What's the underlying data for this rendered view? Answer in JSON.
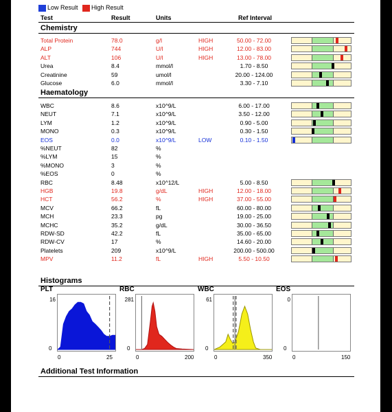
{
  "legend": {
    "low_label": "Low Result",
    "low_color": "#1f3fd8",
    "high_label": "High Result",
    "high_color": "#e0271d"
  },
  "columns": {
    "test": "Test",
    "result": "Result",
    "units": "Units",
    "ref": "Ref Interval"
  },
  "sections": {
    "chemistry": "Chemistry",
    "haematology": "Haematology"
  },
  "chemistry": [
    {
      "test": "Total Protein",
      "result": "78.0",
      "unit": "g/l",
      "flag": "HIGH",
      "ref": "50.00 - 72.00",
      "color": "red",
      "level": 1.15,
      "mark": "red"
    },
    {
      "test": "ALP",
      "result": "744",
      "unit": "U/l",
      "flag": "HIGH",
      "ref": "12.00 - 83.00",
      "color": "red",
      "level": 1.6,
      "mark": "red"
    },
    {
      "test": "ALT",
      "result": "106",
      "unit": "U/l",
      "flag": "HIGH",
      "ref": "13.00 - 78.00",
      "color": "red",
      "level": 1.4,
      "mark": "red"
    },
    {
      "test": "Urea",
      "result": "8.4",
      "unit": "mmol/l",
      "flag": "",
      "ref": "1.70 - 8.50",
      "color": "black",
      "level": 0.97,
      "mark": "black"
    },
    {
      "test": "Creatinine",
      "result": "59",
      "unit": "umol/l",
      "flag": "",
      "ref": "20.00 - 124.00",
      "color": "black",
      "level": 0.37,
      "mark": "black"
    },
    {
      "test": "Glucose",
      "result": "6.0",
      "unit": "mmol/l",
      "flag": "",
      "ref": "3.30 - 7.10",
      "color": "black",
      "level": 0.71,
      "mark": "black"
    }
  ],
  "haematology": [
    {
      "test": "WBC",
      "result": "8.6",
      "unit": "x10^9/L",
      "flag": "",
      "ref": "6.00 - 17.00",
      "color": "black",
      "level": 0.24,
      "mark": "black"
    },
    {
      "test": "NEUT",
      "result": "7.1",
      "unit": "x10^9/L",
      "flag": "",
      "ref": "3.50 - 12.00",
      "color": "black",
      "level": 0.42,
      "mark": "black"
    },
    {
      "test": "LYM",
      "result": "1.2",
      "unit": "x10^9/L",
      "flag": "",
      "ref": "0.90 - 5.00",
      "color": "black",
      "level": 0.07,
      "mark": "black"
    },
    {
      "test": "MONO",
      "result": "0.3",
      "unit": "x10^9/L",
      "flag": "",
      "ref": "0.30 - 1.50",
      "color": "black",
      "level": 0.0,
      "mark": "black"
    },
    {
      "test": "EOS",
      "result": "0.0",
      "unit": "x10^9/L",
      "flag": "LOW",
      "ref": "0.10 - 1.50",
      "color": "blue",
      "level": -0.95,
      "mark": "blue"
    },
    {
      "test": "%NEUT",
      "result": "82",
      "unit": "%",
      "flag": "",
      "ref": "",
      "color": "black",
      "level": null
    },
    {
      "test": "%LYM",
      "result": "15",
      "unit": "%",
      "flag": "",
      "ref": "",
      "color": "black",
      "level": null
    },
    {
      "test": "%MONO",
      "result": "3",
      "unit": "%",
      "flag": "",
      "ref": "",
      "color": "black",
      "level": null
    },
    {
      "test": "%EOS",
      "result": "0",
      "unit": "%",
      "flag": "",
      "ref": "",
      "color": "black",
      "level": null
    },
    {
      "test": "RBC",
      "result": "8.48",
      "unit": "x10^12/L",
      "flag": "",
      "ref": "5.00 - 8.50",
      "color": "black",
      "level": 0.99,
      "mark": "black"
    },
    {
      "test": "HGB",
      "result": "19.8",
      "unit": "g/dL",
      "flag": "HIGH",
      "ref": "12.00 - 18.00",
      "color": "red",
      "level": 1.3,
      "mark": "red"
    },
    {
      "test": "HCT",
      "result": "56.2",
      "unit": "%",
      "flag": "HIGH",
      "ref": "37.00 - 55.00",
      "color": "red",
      "level": 1.07,
      "mark": "red"
    },
    {
      "test": "MCV",
      "result": "66.2",
      "unit": "fL",
      "flag": "",
      "ref": "60.00 - 80.00",
      "color": "black",
      "level": 0.31,
      "mark": "black"
    },
    {
      "test": "MCH",
      "result": "23.3",
      "unit": "pg",
      "flag": "",
      "ref": "19.00 - 25.00",
      "color": "black",
      "level": 0.72,
      "mark": "black"
    },
    {
      "test": "MCHC",
      "result": "35.2",
      "unit": "g/dL",
      "flag": "",
      "ref": "30.00 - 36.50",
      "color": "black",
      "level": 0.8,
      "mark": "black"
    },
    {
      "test": "RDW-SD",
      "result": "42.2",
      "unit": "fL",
      "flag": "",
      "ref": "35.00 - 65.00",
      "color": "black",
      "level": 0.24,
      "mark": "black"
    },
    {
      "test": "RDW-CV",
      "result": "17",
      "unit": "%",
      "flag": "",
      "ref": "14.60 - 20.00",
      "color": "black",
      "level": 0.44,
      "mark": "black"
    },
    {
      "test": "Platelets",
      "result": "209",
      "unit": "x10^9/L",
      "flag": "",
      "ref": "200.00 - 500.00",
      "color": "black",
      "level": 0.03,
      "mark": "black"
    },
    {
      "test": "MPV",
      "result": "11.2",
      "unit": "fL",
      "flag": "HIGH",
      "ref": "5.50 - 10.50",
      "color": "red",
      "level": 1.14,
      "mark": "red"
    }
  ],
  "histograms": {
    "title": "Histograms",
    "items": [
      {
        "label": "PLT",
        "ymax": "16",
        "xmin": "0",
        "xmax": "25",
        "fill": "#0a16d8",
        "stroke": "#0a16d8",
        "curve": [
          [
            0,
            0
          ],
          [
            0.05,
            0.05
          ],
          [
            0.1,
            0.5
          ],
          [
            0.15,
            0.65
          ],
          [
            0.2,
            0.75
          ],
          [
            0.25,
            0.8
          ],
          [
            0.3,
            0.88
          ],
          [
            0.35,
            0.93
          ],
          [
            0.4,
            0.93
          ],
          [
            0.45,
            0.9
          ],
          [
            0.5,
            0.75
          ],
          [
            0.55,
            0.68
          ],
          [
            0.6,
            0.55
          ],
          [
            0.65,
            0.5
          ],
          [
            0.7,
            0.44
          ],
          [
            0.75,
            0.38
          ],
          [
            0.8,
            0.3
          ],
          [
            0.85,
            0.26
          ],
          [
            0.9,
            0.26
          ],
          [
            0.95,
            0.28
          ],
          [
            1,
            0.28
          ]
        ],
        "dashed": [
          0.9
        ],
        "solid": []
      },
      {
        "label": "RBC",
        "ymax": "281",
        "xmin": "0",
        "xmax": "200",
        "fill": "#e0271d",
        "stroke": "#b01010",
        "curve": [
          [
            0,
            0
          ],
          [
            0.1,
            0
          ],
          [
            0.15,
            0.02
          ],
          [
            0.2,
            0.1
          ],
          [
            0.25,
            0.55
          ],
          [
            0.28,
            0.85
          ],
          [
            0.3,
            0.92
          ],
          [
            0.33,
            0.75
          ],
          [
            0.36,
            0.45
          ],
          [
            0.4,
            0.3
          ],
          [
            0.45,
            0.26
          ],
          [
            0.5,
            0.2
          ],
          [
            0.55,
            0.14
          ],
          [
            0.6,
            0.09
          ],
          [
            0.65,
            0.05
          ],
          [
            0.7,
            0.02
          ],
          [
            0.8,
            0.01
          ],
          [
            1,
            0
          ]
        ],
        "dashed": [],
        "solid": [
          0.1
        ]
      },
      {
        "label": "WBC",
        "ymax": "61",
        "xmin": "0",
        "xmax": "350",
        "fill": "#f5ef1a",
        "stroke": "#9a9400",
        "curve": [
          [
            0,
            0
          ],
          [
            0.1,
            0.05
          ],
          [
            0.15,
            0.1
          ],
          [
            0.2,
            0.15
          ],
          [
            0.24,
            0.3
          ],
          [
            0.28,
            0.2
          ],
          [
            0.32,
            0.12
          ],
          [
            0.36,
            0.15
          ],
          [
            0.42,
            0.35
          ],
          [
            0.48,
            0.7
          ],
          [
            0.53,
            0.85
          ],
          [
            0.58,
            0.7
          ],
          [
            0.63,
            0.4
          ],
          [
            0.68,
            0.15
          ],
          [
            0.72,
            0.03
          ],
          [
            0.8,
            0
          ],
          [
            1,
            0
          ]
        ],
        "dashed": [
          0.33,
          0.38
        ],
        "solid": [
          0.36
        ]
      },
      {
        "label": "EOS",
        "ymax": "0",
        "xmin": "0",
        "xmax": "150",
        "fill": "#dddddd",
        "stroke": "#777777",
        "curve": [],
        "dashed": [],
        "solid": [
          0.45
        ]
      }
    ]
  },
  "additional": "Additional Test Information"
}
